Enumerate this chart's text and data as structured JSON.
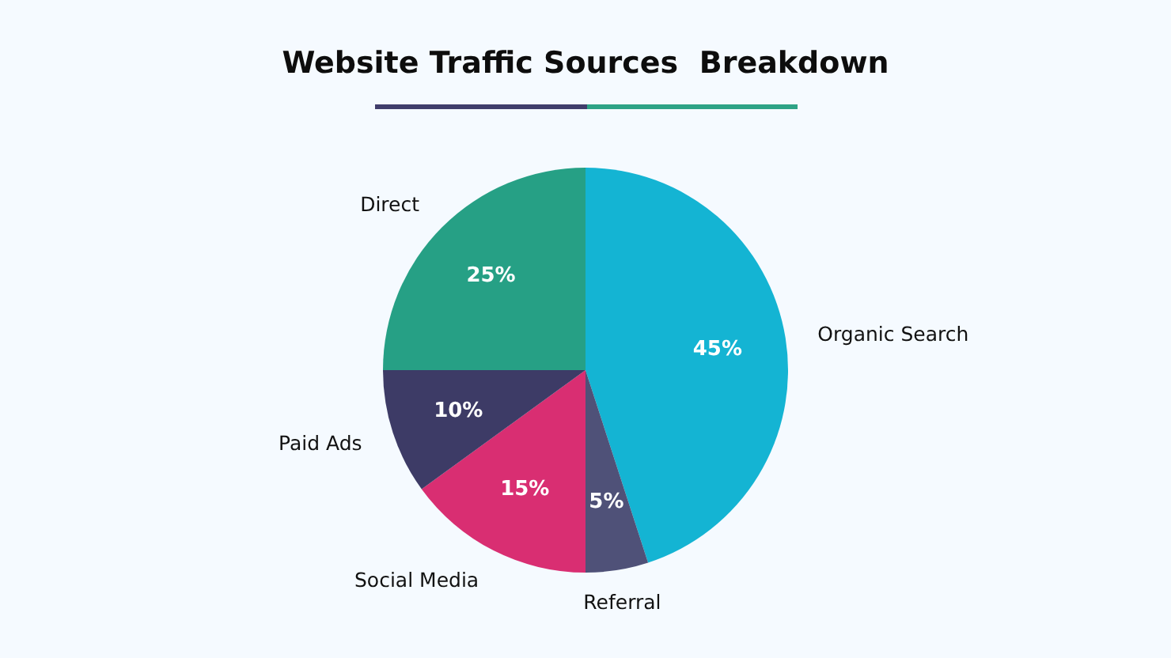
{
  "chart_data": {
    "type": "pie",
    "title": "Website Traffic Sources  Breakdown",
    "categories": [
      "Organic Search",
      "Referral",
      "Social Media",
      "Paid Ads",
      "Direct"
    ],
    "values": [
      45,
      5,
      15,
      10,
      25
    ],
    "colors": [
      "#14b4d3",
      "#4f5178",
      "#d92e72",
      "#3d3b66",
      "#26a085"
    ],
    "value_labels": [
      "45%",
      "5%",
      "15%",
      "10%",
      "25%"
    ]
  }
}
